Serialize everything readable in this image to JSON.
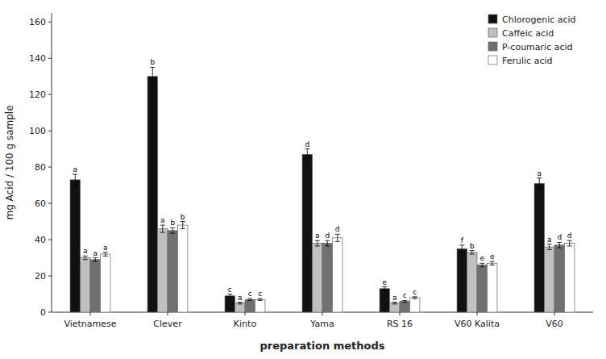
{
  "chart_data": {
    "type": "bar",
    "xlabel": "preparation methods",
    "ylabel": "mg Acid / 100 g sample",
    "categories": [
      "Vietnamese",
      "Clever",
      "Kinto",
      "Yama",
      "RS 16",
      "V60 Kalita",
      "V60"
    ],
    "series": [
      {
        "name": "Chlorogenic acid",
        "color": "#111111",
        "values": [
          73,
          130,
          9,
          87,
          13,
          35,
          71
        ],
        "errors": [
          3,
          5,
          1,
          3,
          1,
          2,
          3
        ],
        "labels": [
          "a",
          "b",
          "c",
          "d",
          "e",
          "f",
          "a"
        ]
      },
      {
        "name": "Caffeic acid",
        "color": "#c0c0c0",
        "values": [
          30,
          46,
          5,
          38,
          5,
          33,
          36
        ],
        "errors": [
          1,
          2,
          0.5,
          1.5,
          0.5,
          1,
          1.5
        ],
        "labels": [
          "a",
          "a",
          "a",
          "a",
          "a",
          "b",
          "a"
        ]
      },
      {
        "name": "P-coumaric acid",
        "color": "#707070",
        "values": [
          29,
          45,
          7,
          38,
          6,
          26,
          37
        ],
        "errors": [
          1,
          1.5,
          0.5,
          1.5,
          0.5,
          1,
          1.5
        ],
        "labels": [
          "a",
          "b",
          "c",
          "d",
          "c",
          "e",
          "d"
        ]
      },
      {
        "name": "Ferulic acid",
        "color": "#ffffff",
        "values": [
          32,
          48,
          7,
          41,
          8,
          27,
          38
        ],
        "errors": [
          1,
          2,
          0.5,
          2,
          0.5,
          1,
          1.5
        ],
        "labels": [
          "a",
          "b",
          "c",
          "d",
          "c",
          "e",
          "d"
        ]
      }
    ],
    "ylim": [
      0,
      165
    ],
    "yticks": [
      0,
      20,
      40,
      60,
      80,
      100,
      120,
      140,
      160
    ],
    "grid": false,
    "legend": "upper right"
  }
}
